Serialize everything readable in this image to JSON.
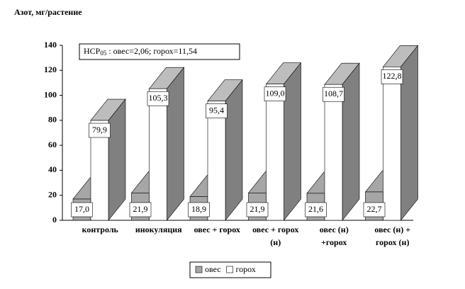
{
  "chart_data": {
    "type": "bar3d",
    "ylabel": "Азот, мг/растение",
    "annotation": {
      "text": "НСР",
      "sub": "05",
      "rest": " : овес=2,06; горох=11,54"
    },
    "categories": [
      "контроль",
      "инокуляция",
      "овес + горох",
      "овес + горох (н)",
      "овес (н) +горох",
      "овес (н) + горох (н)"
    ],
    "series": [
      {
        "name": "овес",
        "color": "#a6a6a6",
        "values": [
          17.0,
          21.9,
          18.9,
          21.9,
          21.6,
          22.7
        ],
        "value_labels": [
          "17,0",
          "21,9",
          "18,9",
          "21,9",
          "21,6",
          "22,7"
        ]
      },
      {
        "name": "горох",
        "color": "#ffffff",
        "values": [
          79.9,
          105.3,
          95.4,
          109.0,
          108.7,
          122.8
        ],
        "value_labels": [
          "79,9",
          "105,3",
          "95,4",
          "109,0",
          "108,7",
          "122,8"
        ]
      }
    ],
    "ylim": [
      0,
      140
    ],
    "yticks": [
      0,
      20,
      40,
      60,
      80,
      100,
      120,
      140
    ]
  }
}
